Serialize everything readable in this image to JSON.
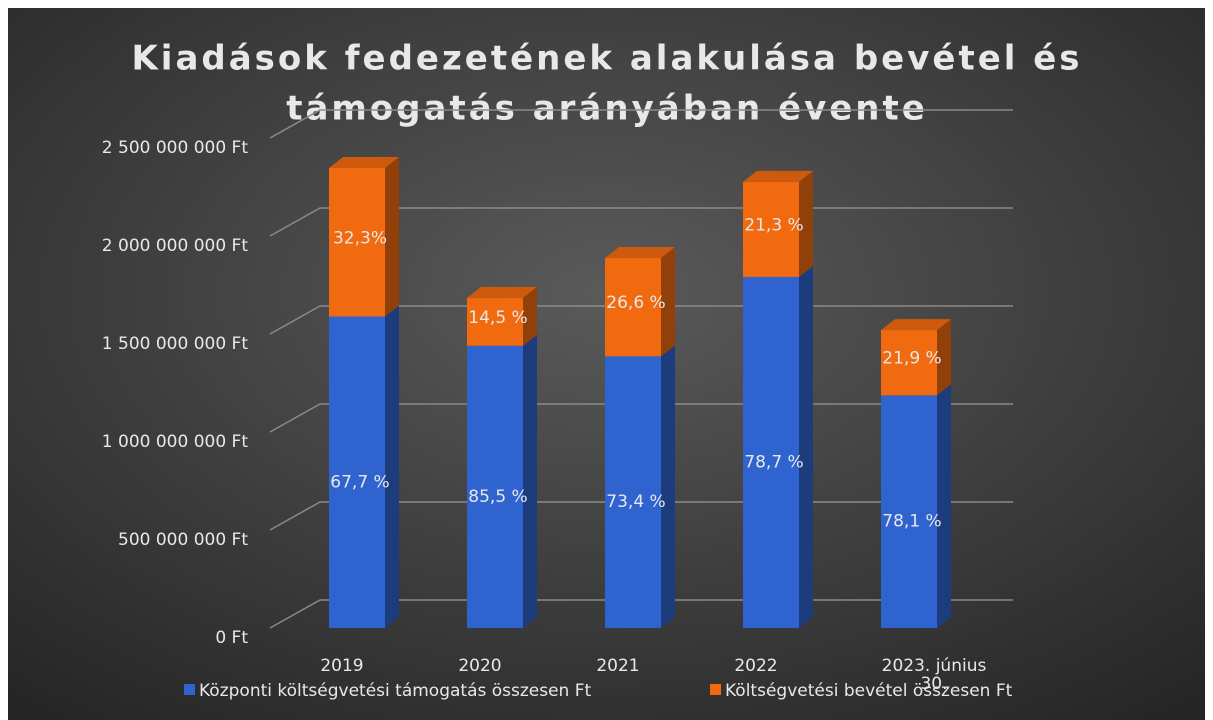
{
  "chart_data": {
    "type": "bar3d_stacked",
    "title_lines": [
      "Kiadások fedezetének alakulása bevétel és",
      "támogatás arányában évente"
    ],
    "categories": [
      "2019",
      "2020",
      "2021",
      "2022",
      "2023. június 30."
    ],
    "series": [
      {
        "name": "Központi költségvetési támogatás összesen Ft",
        "color": "#2f64d0",
        "values": [
          1589000000,
          1440000000,
          1386000000,
          1791000000,
          1187000000
        ],
        "labels": [
          "67,7 %",
          "85,5 %",
          "73,4 %",
          "78,7 %",
          "78,1 %"
        ]
      },
      {
        "name": "Költségvetési bevétel összesen Ft",
        "color": "#f26a10",
        "values": [
          758000000,
          244000000,
          502000000,
          485000000,
          333000000
        ],
        "labels": [
          "32,3%",
          "14,5 %",
          "26,6 %",
          "21,3 %",
          "21,9 %"
        ]
      }
    ],
    "ylim": [
      0,
      2500000000
    ],
    "yticks": [
      {
        "value": 0,
        "label": "0 Ft"
      },
      {
        "value": 500000000,
        "label": "500 000 000 Ft"
      },
      {
        "value": 1000000000,
        "label": "1 000 000 000 Ft"
      },
      {
        "value": 1500000000,
        "label": "1 500 000 000 Ft"
      },
      {
        "value": 2000000000,
        "label": "2 000 000 000 Ft"
      },
      {
        "value": 2500000000,
        "label": "2 500 000 000 Ft"
      }
    ],
    "grid": true,
    "legend": "bottom"
  }
}
